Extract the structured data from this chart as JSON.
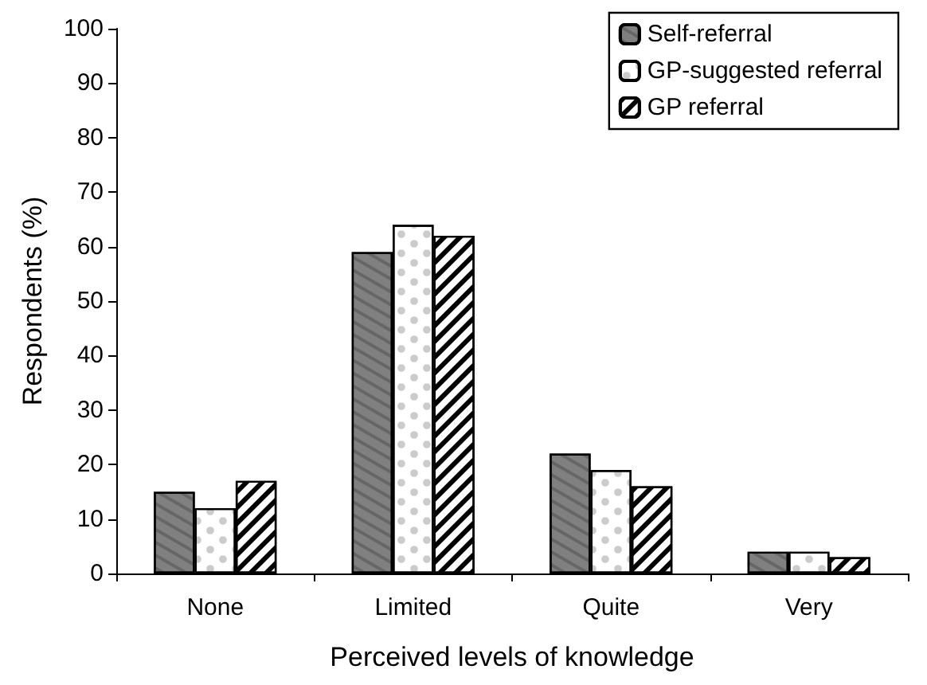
{
  "chart_data": {
    "type": "bar",
    "xlabel": "Perceived levels of knowledge",
    "ylabel": "Respondents (%)",
    "categories": [
      "None",
      "Limited",
      "Quite",
      "Very"
    ],
    "series": [
      {
        "name": "Self-referral",
        "color": "#808080",
        "values": [
          15,
          59,
          22,
          4
        ]
      },
      {
        "name": "GP-suggested referral",
        "color": "#ffffff",
        "values": [
          12,
          64,
          19,
          4
        ]
      },
      {
        "name": "GP referral",
        "color": "#000000",
        "values": [
          17,
          62,
          16,
          3
        ]
      }
    ],
    "ylim": [
      0,
      100
    ],
    "yticks": [
      0,
      10,
      20,
      30,
      40,
      50,
      60,
      70,
      80,
      90,
      100
    ],
    "grid": false,
    "legend": "top right"
  }
}
